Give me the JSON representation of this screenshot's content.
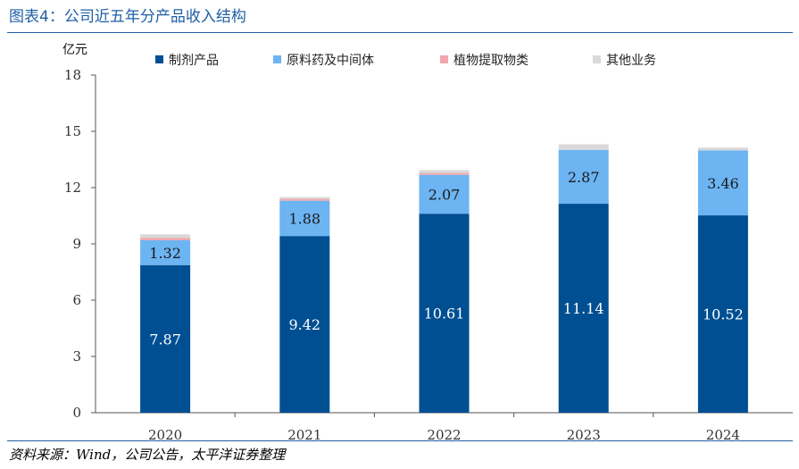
{
  "header": {
    "title": "图表4：公司近五年分产品收入结构"
  },
  "footer": {
    "source": "资料来源：Wind，公司公告，太平洋证券整理"
  },
  "chart_data": {
    "type": "bar",
    "stacked": true,
    "ylabel": "亿元",
    "ylim": [
      0,
      18
    ],
    "yticks": [
      0,
      3,
      6,
      9,
      12,
      15,
      18
    ],
    "categories": [
      "2020",
      "2021",
      "2022",
      "2023",
      "2024"
    ],
    "legend_position": "top",
    "grid": false,
    "series": [
      {
        "name": "制剂产品",
        "color": "#004f93",
        "label_color": "#ffffff",
        "values": [
          7.87,
          9.42,
          10.61,
          11.14,
          10.52
        ],
        "labels": [
          "7.87",
          "9.42",
          "10.61",
          "11.14",
          "10.52"
        ]
      },
      {
        "name": "原料药及中间体",
        "color": "#6cb4f2",
        "label_color": "#1a1a1a",
        "values": [
          1.32,
          1.88,
          2.07,
          2.87,
          3.46
        ],
        "labels": [
          "1.32",
          "1.88",
          "2.07",
          "2.87",
          "3.46"
        ]
      },
      {
        "name": "植物提取物类",
        "color": "#f2a7ac",
        "values": [
          0.12,
          0.1,
          0.1,
          0.0,
          0.0
        ]
      },
      {
        "name": "其他业务",
        "color": "#d9d9d9",
        "values": [
          0.2,
          0.1,
          0.15,
          0.3,
          0.15
        ]
      }
    ]
  }
}
